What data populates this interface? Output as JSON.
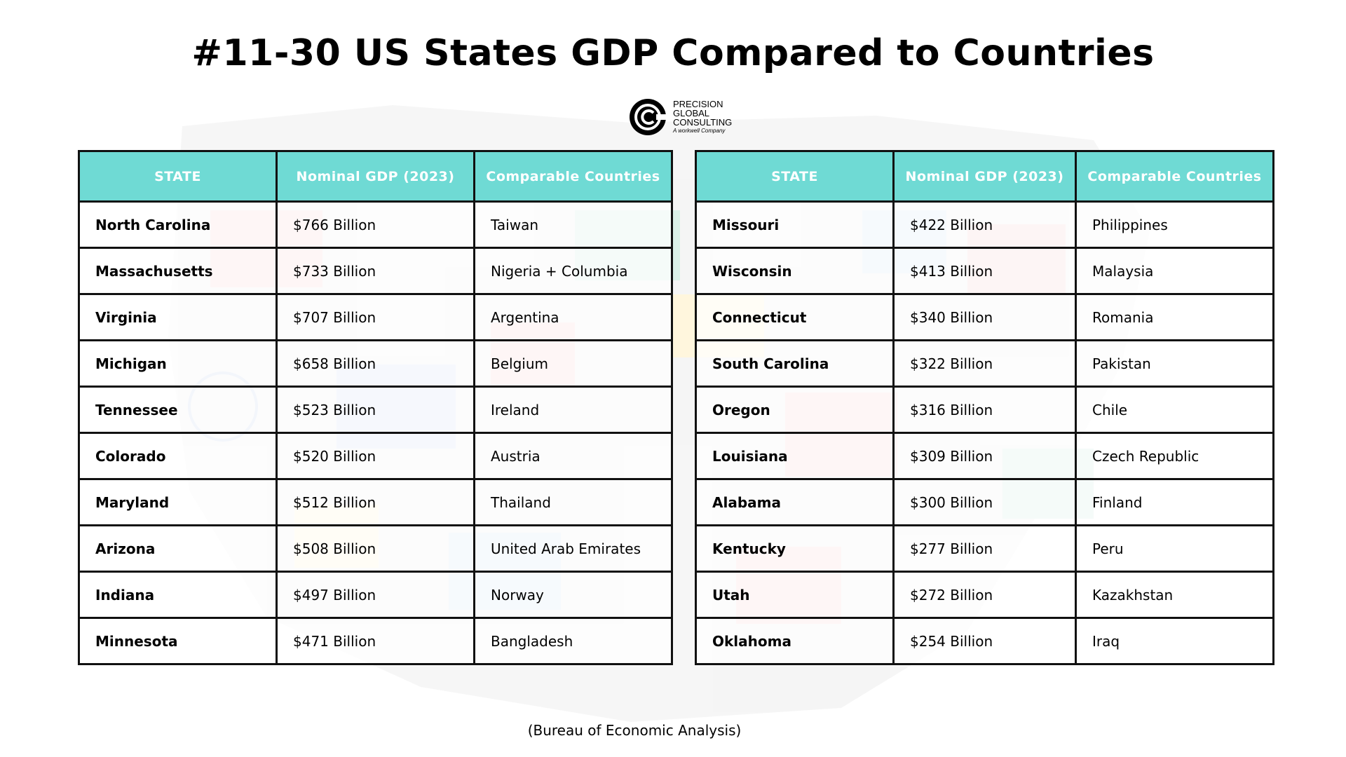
{
  "title": "#11-30 US States GDP Compared to Countries",
  "logo": {
    "icon": "precision-global-consulting-logo",
    "lines": [
      "PRECISION",
      "GLOBAL",
      "CONSULTING"
    ],
    "sub": "A workwell Company"
  },
  "table_left": {
    "headers": [
      "STATE",
      "Nominal GDP (2023)",
      "Comparable Countries"
    ],
    "rows": [
      [
        "North Carolina",
        "$766 Billion",
        "Taiwan"
      ],
      [
        "Massachusetts",
        "$733 Billion",
        "Nigeria + Columbia"
      ],
      [
        "Virginia",
        "$707 Billion",
        "Argentina"
      ],
      [
        "Michigan",
        "$658 Billion",
        "Belgium"
      ],
      [
        "Tennessee",
        "$523 Billion",
        "Ireland"
      ],
      [
        "Colorado",
        "$520 Billion",
        "Austria"
      ],
      [
        "Maryland",
        "$512 Billion",
        "Thailand"
      ],
      [
        "Arizona",
        "$508 Billion",
        "United Arab Emirates"
      ],
      [
        "Indiana",
        "$497 Billion",
        "Norway"
      ],
      [
        "Minnesota",
        "$471 Billion",
        "Bangladesh"
      ]
    ]
  },
  "table_right": {
    "headers": [
      "STATE",
      "Nominal GDP (2023)",
      "Comparable Countries"
    ],
    "rows": [
      [
        "Missouri",
        "$422 Billion",
        "Philippines"
      ],
      [
        "Wisconsin",
        "$413 Billion",
        "Malaysia"
      ],
      [
        "Connecticut",
        "$340 Billion",
        "Romania"
      ],
      [
        "South Carolina",
        "$322 Billion",
        "Pakistan"
      ],
      [
        "Oregon",
        "$316 Billion",
        "Chile"
      ],
      [
        "Louisiana",
        "$309 Billion",
        "Czech Republic"
      ],
      [
        "Alabama",
        "$300 Billion",
        "Finland"
      ],
      [
        "Kentucky",
        "$277 Billion",
        "Peru"
      ],
      [
        "Utah",
        "$272 Billion",
        "Kazakhstan"
      ],
      [
        "Oklahoma",
        "$254 Billion",
        "Iraq"
      ]
    ]
  },
  "source": "(Bureau of Economic Analysis)",
  "colors": {
    "header_bg": "#6fdad4",
    "border": "#111111"
  }
}
